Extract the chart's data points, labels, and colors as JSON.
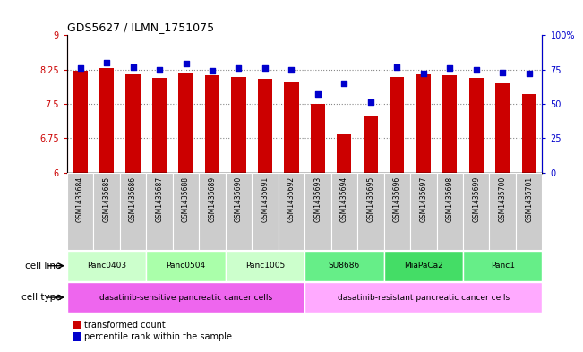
{
  "title": "GDS5627 / ILMN_1751075",
  "samples": [
    "GSM1435684",
    "GSM1435685",
    "GSM1435686",
    "GSM1435687",
    "GSM1435688",
    "GSM1435689",
    "GSM1435690",
    "GSM1435691",
    "GSM1435692",
    "GSM1435693",
    "GSM1435694",
    "GSM1435695",
    "GSM1435696",
    "GSM1435697",
    "GSM1435698",
    "GSM1435699",
    "GSM1435700",
    "GSM1435701"
  ],
  "bar_values": [
    8.22,
    8.28,
    8.15,
    8.07,
    8.19,
    8.13,
    8.09,
    8.05,
    7.99,
    7.49,
    6.84,
    7.22,
    8.09,
    8.14,
    8.13,
    8.07,
    7.94,
    7.72
  ],
  "dot_values": [
    76,
    80,
    77,
    75,
    79,
    74,
    76,
    76,
    75,
    57,
    65,
    51,
    77,
    72,
    76,
    75,
    73,
    72
  ],
  "ylim_left": [
    6,
    9
  ],
  "ylim_right": [
    0,
    100
  ],
  "yticks_left": [
    6,
    6.75,
    7.5,
    8.25,
    9
  ],
  "yticks_right": [
    0,
    25,
    50,
    75,
    100
  ],
  "bar_color": "#cc0000",
  "dot_color": "#0000cc",
  "cell_lines": [
    {
      "label": "Panc0403",
      "start": 0,
      "end": 3,
      "color": "#ccffcc"
    },
    {
      "label": "Panc0504",
      "start": 3,
      "end": 6,
      "color": "#aaffaa"
    },
    {
      "label": "Panc1005",
      "start": 6,
      "end": 9,
      "color": "#ccffcc"
    },
    {
      "label": "SU8686",
      "start": 9,
      "end": 12,
      "color": "#66ee88"
    },
    {
      "label": "MiaPaCa2",
      "start": 12,
      "end": 15,
      "color": "#44dd66"
    },
    {
      "label": "Panc1",
      "start": 15,
      "end": 18,
      "color": "#66ee88"
    }
  ],
  "cell_types": [
    {
      "label": "dasatinib-sensitive pancreatic cancer cells",
      "start": 0,
      "end": 9,
      "color": "#ee66ee"
    },
    {
      "label": "dasatinib-resistant pancreatic cancer cells",
      "start": 9,
      "end": 18,
      "color": "#ffaaff"
    }
  ],
  "legend_bar_label": "transformed count",
  "legend_dot_label": "percentile rank within the sample",
  "cell_line_label": "cell line",
  "cell_type_label": "cell type",
  "grid_color": "#888888",
  "bg_color": "#ffffff",
  "bar_width": 0.55,
  "xtick_bg": "#cccccc"
}
